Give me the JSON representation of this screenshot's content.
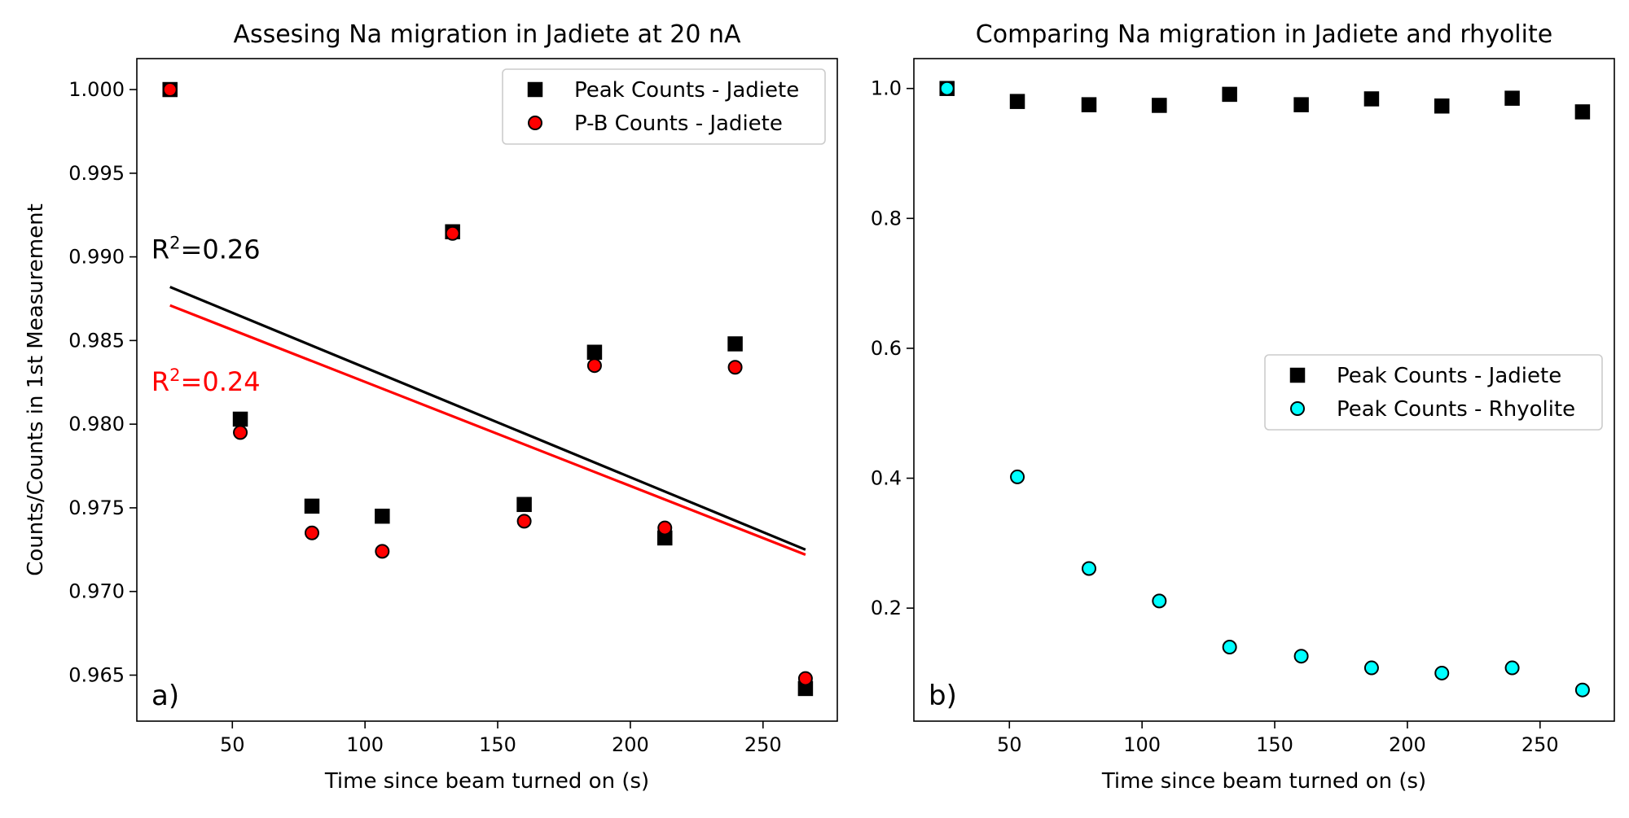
{
  "chart_data": [
    {
      "type": "scatter",
      "panel_label": "a)",
      "title": "Assesing Na migration in Jadiete at 20 nA",
      "xlabel": "Time since beam turned on (s)",
      "ylabel": "Counts/Counts in 1st Measurement",
      "xlim": [
        14,
        278
      ],
      "ylim": [
        0.96225,
        1.00185
      ],
      "xticks": [
        50,
        100,
        150,
        200,
        250
      ],
      "yticks": [
        0.965,
        0.97,
        0.975,
        0.98,
        0.985,
        0.99,
        0.995,
        1.0
      ],
      "ytick_labels": [
        "0.965",
        "0.970",
        "0.975",
        "0.980",
        "0.985",
        "0.990",
        "0.995",
        "1.000"
      ],
      "grid": false,
      "legend_position": "top-right",
      "series": [
        {
          "name": "Peak Counts - Jadiete",
          "marker": "square",
          "color": "#000000",
          "edge": "#000000",
          "x": [
            26.5,
            53,
            80,
            106.5,
            133,
            160,
            186.5,
            213,
            239.5,
            266
          ],
          "y": [
            1.0,
            0.9803,
            0.9751,
            0.9745,
            0.9915,
            0.9752,
            0.9843,
            0.9732,
            0.9848,
            0.9642
          ]
        },
        {
          "name": "P-B Counts - Jadiete",
          "marker": "circle",
          "color": "#ff0000",
          "edge": "#000000",
          "x": [
            26.5,
            53,
            80,
            106.5,
            133,
            160,
            186.5,
            213,
            239.5,
            266
          ],
          "y": [
            1.0,
            0.9795,
            0.9735,
            0.9724,
            0.9914,
            0.9742,
            0.9835,
            0.9738,
            0.9834,
            0.9648
          ]
        }
      ],
      "fit_lines": [
        {
          "color": "#000000",
          "x": [
            26.5,
            266
          ],
          "y": [
            0.9882,
            0.9725
          ]
        },
        {
          "color": "#ff0000",
          "x": [
            26.5,
            266
          ],
          "y": [
            0.9871,
            0.9722
          ]
        }
      ],
      "annotations": [
        {
          "prefix": "R",
          "sup": "2",
          "suffix": "=0.26",
          "color": "#000000",
          "x": 19.5,
          "y": 0.9899
        },
        {
          "prefix": "R",
          "sup": "2",
          "suffix": "=0.24",
          "color": "#ff0000",
          "x": 19.5,
          "y": 0.982
        }
      ]
    },
    {
      "type": "scatter",
      "panel_label": "b)",
      "title": "Comparing Na migration in Jadiete and rhyolite",
      "xlabel": "Time since beam turned on (s)",
      "ylabel": "",
      "xlim": [
        14,
        278
      ],
      "ylim": [
        0.026,
        1.046
      ],
      "xticks": [
        50,
        100,
        150,
        200,
        250
      ],
      "yticks": [
        0.2,
        0.4,
        0.6,
        0.8,
        1.0
      ],
      "ytick_labels": [
        "0.2",
        "0.4",
        "0.6",
        "0.8",
        "1.0"
      ],
      "grid": false,
      "legend_position": "center-right",
      "series": [
        {
          "name": "Peak Counts - Jadiete",
          "marker": "square",
          "color": "#000000",
          "edge": "#000000",
          "x": [
            26.5,
            53,
            80,
            106.5,
            133,
            160,
            186.5,
            213,
            239.5,
            266
          ],
          "y": [
            1.0,
            0.98,
            0.975,
            0.974,
            0.991,
            0.975,
            0.984,
            0.973,
            0.985,
            0.964
          ]
        },
        {
          "name": "Peak Counts - Rhyolite",
          "marker": "circle",
          "color": "#00ffff",
          "edge": "#000000",
          "x": [
            26.5,
            53,
            80,
            106.5,
            133,
            160,
            186.5,
            213,
            239.5,
            266
          ],
          "y": [
            1.0,
            0.402,
            0.261,
            0.211,
            0.14,
            0.126,
            0.108,
            0.1,
            0.108,
            0.074
          ]
        }
      ],
      "fit_lines": [],
      "annotations": []
    }
  ]
}
